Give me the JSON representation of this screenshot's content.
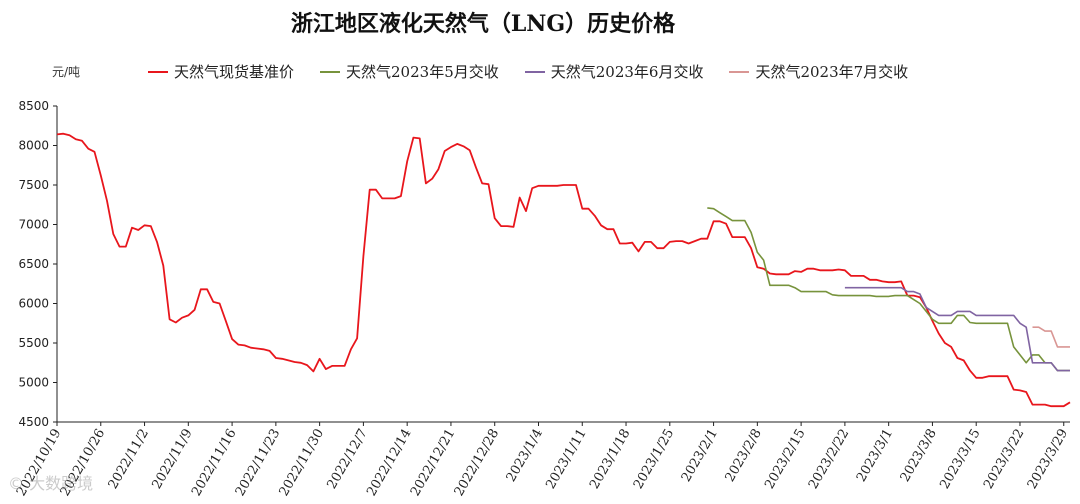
{
  "page": {
    "watermark": "© 大数跨境"
  },
  "chart_data": {
    "type": "line",
    "title": "浙江地区液化天然气（LNG）历史价格",
    "unit_label": "元/吨",
    "ylim": [
      4500,
      8500
    ],
    "yticks": [
      4500,
      5000,
      5500,
      6000,
      6500,
      7000,
      7500,
      8000,
      8500
    ],
    "xlim": [
      "2022-10-19",
      "2023-03-30"
    ],
    "xtick_labels": [
      "2022/10/19",
      "2022/10/26",
      "2022/11/2",
      "2022/11/9",
      "2022/11/16",
      "2022/11/23",
      "2022/11/30",
      "2022/12/7",
      "2022/12/14",
      "2022/12/21",
      "2022/12/28",
      "2023/1/4",
      "2023/1/11",
      "2023/1/18",
      "2023/1/25",
      "2023/2/1",
      "2023/2/8",
      "2023/2/15",
      "2023/2/22",
      "2023/3/1",
      "2023/3/8",
      "2023/3/15",
      "2023/3/22",
      "2023/3/29"
    ],
    "grid": false,
    "legend_position": "top",
    "series": [
      {
        "name": "天然气现货基准价",
        "color": "#e8161c",
        "points": [
          [
            "2022-10-19",
            8140
          ],
          [
            "2022-10-20",
            8150
          ],
          [
            "2022-10-21",
            8130
          ],
          [
            "2022-10-22",
            8080
          ],
          [
            "2022-10-23",
            8060
          ],
          [
            "2022-10-24",
            7960
          ],
          [
            "2022-10-25",
            7920
          ],
          [
            "2022-10-26",
            7620
          ],
          [
            "2022-10-27",
            7300
          ],
          [
            "2022-10-28",
            6880
          ],
          [
            "2022-10-29",
            6720
          ],
          [
            "2022-10-30",
            6720
          ],
          [
            "2022-10-31",
            6960
          ],
          [
            "2022-11-01",
            6930
          ],
          [
            "2022-11-02",
            6990
          ],
          [
            "2022-11-03",
            6980
          ],
          [
            "2022-11-04",
            6780
          ],
          [
            "2022-11-05",
            6480
          ],
          [
            "2022-11-06",
            5800
          ],
          [
            "2022-11-07",
            5760
          ],
          [
            "2022-11-08",
            5820
          ],
          [
            "2022-11-09",
            5850
          ],
          [
            "2022-11-10",
            5920
          ],
          [
            "2022-11-11",
            6180
          ],
          [
            "2022-11-12",
            6180
          ],
          [
            "2022-11-13",
            6020
          ],
          [
            "2022-11-14",
            6000
          ],
          [
            "2022-11-15",
            5780
          ],
          [
            "2022-11-16",
            5550
          ],
          [
            "2022-11-17",
            5480
          ],
          [
            "2022-11-18",
            5470
          ],
          [
            "2022-11-19",
            5440
          ],
          [
            "2022-11-20",
            5430
          ],
          [
            "2022-11-21",
            5420
          ],
          [
            "2022-11-22",
            5400
          ],
          [
            "2022-11-23",
            5310
          ],
          [
            "2022-11-24",
            5300
          ],
          [
            "2022-11-25",
            5280
          ],
          [
            "2022-11-26",
            5260
          ],
          [
            "2022-11-27",
            5250
          ],
          [
            "2022-11-28",
            5220
          ],
          [
            "2022-11-29",
            5140
          ],
          [
            "2022-11-30",
            5300
          ],
          [
            "2022-12-01",
            5170
          ],
          [
            "2022-12-02",
            5210
          ],
          [
            "2022-12-03",
            5210
          ],
          [
            "2022-12-04",
            5210
          ],
          [
            "2022-12-05",
            5420
          ],
          [
            "2022-12-06",
            5560
          ],
          [
            "2022-12-07",
            6600
          ],
          [
            "2022-12-08",
            7440
          ],
          [
            "2022-12-09",
            7440
          ],
          [
            "2022-12-10",
            7330
          ],
          [
            "2022-12-11",
            7330
          ],
          [
            "2022-12-12",
            7330
          ],
          [
            "2022-12-13",
            7360
          ],
          [
            "2022-12-14",
            7800
          ],
          [
            "2022-12-15",
            8100
          ],
          [
            "2022-12-16",
            8090
          ],
          [
            "2022-12-17",
            7520
          ],
          [
            "2022-12-18",
            7580
          ],
          [
            "2022-12-19",
            7700
          ],
          [
            "2022-12-20",
            7930
          ],
          [
            "2022-12-21",
            7980
          ],
          [
            "2022-12-22",
            8020
          ],
          [
            "2022-12-23",
            7990
          ],
          [
            "2022-12-24",
            7940
          ],
          [
            "2022-12-25",
            7720
          ],
          [
            "2022-12-26",
            7520
          ],
          [
            "2022-12-27",
            7510
          ],
          [
            "2022-12-28",
            7080
          ],
          [
            "2022-12-29",
            6980
          ],
          [
            "2022-12-30",
            6980
          ],
          [
            "2022-12-31",
            6970
          ],
          [
            "2023-01-01",
            7340
          ],
          [
            "2023-01-02",
            7170
          ],
          [
            "2023-01-03",
            7460
          ],
          [
            "2023-01-04",
            7490
          ],
          [
            "2023-01-05",
            7490
          ],
          [
            "2023-01-06",
            7490
          ],
          [
            "2023-01-07",
            7490
          ],
          [
            "2023-01-08",
            7500
          ],
          [
            "2023-01-09",
            7500
          ],
          [
            "2023-01-10",
            7500
          ],
          [
            "2023-01-11",
            7200
          ],
          [
            "2023-01-12",
            7200
          ],
          [
            "2023-01-13",
            7110
          ],
          [
            "2023-01-14",
            6990
          ],
          [
            "2023-01-15",
            6940
          ],
          [
            "2023-01-16",
            6940
          ],
          [
            "2023-01-17",
            6760
          ],
          [
            "2023-01-18",
            6760
          ],
          [
            "2023-01-19",
            6770
          ],
          [
            "2023-01-20",
            6660
          ],
          [
            "2023-01-21",
            6780
          ],
          [
            "2023-01-22",
            6780
          ],
          [
            "2023-01-23",
            6700
          ],
          [
            "2023-01-24",
            6700
          ],
          [
            "2023-01-25",
            6780
          ],
          [
            "2023-01-26",
            6790
          ],
          [
            "2023-01-27",
            6790
          ],
          [
            "2023-01-28",
            6760
          ],
          [
            "2023-01-29",
            6790
          ],
          [
            "2023-01-30",
            6820
          ],
          [
            "2023-01-31",
            6820
          ],
          [
            "2023-02-01",
            7040
          ],
          [
            "2023-02-02",
            7040
          ],
          [
            "2023-02-03",
            7010
          ],
          [
            "2023-02-04",
            6840
          ],
          [
            "2023-02-05",
            6840
          ],
          [
            "2023-02-06",
            6840
          ],
          [
            "2023-02-07",
            6700
          ],
          [
            "2023-02-08",
            6460
          ],
          [
            "2023-02-09",
            6440
          ],
          [
            "2023-02-10",
            6380
          ],
          [
            "2023-02-11",
            6370
          ],
          [
            "2023-02-12",
            6370
          ],
          [
            "2023-02-13",
            6370
          ],
          [
            "2023-02-14",
            6410
          ],
          [
            "2023-02-15",
            6400
          ],
          [
            "2023-02-16",
            6440
          ],
          [
            "2023-02-17",
            6440
          ],
          [
            "2023-02-18",
            6420
          ],
          [
            "2023-02-19",
            6420
          ],
          [
            "2023-02-20",
            6420
          ],
          [
            "2023-02-21",
            6430
          ],
          [
            "2023-02-22",
            6420
          ],
          [
            "2023-02-23",
            6350
          ],
          [
            "2023-02-24",
            6350
          ],
          [
            "2023-02-25",
            6350
          ],
          [
            "2023-02-26",
            6300
          ],
          [
            "2023-02-27",
            6300
          ],
          [
            "2023-02-28",
            6280
          ],
          [
            "2023-03-01",
            6270
          ],
          [
            "2023-03-02",
            6270
          ],
          [
            "2023-03-03",
            6280
          ],
          [
            "2023-03-04",
            6100
          ],
          [
            "2023-03-05",
            6100
          ],
          [
            "2023-03-06",
            6080
          ],
          [
            "2023-03-07",
            5950
          ],
          [
            "2023-03-08",
            5780
          ],
          [
            "2023-03-09",
            5620
          ],
          [
            "2023-03-10",
            5500
          ],
          [
            "2023-03-11",
            5450
          ],
          [
            "2023-03-12",
            5310
          ],
          [
            "2023-03-13",
            5280
          ],
          [
            "2023-03-14",
            5150
          ],
          [
            "2023-03-15",
            5060
          ],
          [
            "2023-03-16",
            5060
          ],
          [
            "2023-03-17",
            5080
          ],
          [
            "2023-03-18",
            5080
          ],
          [
            "2023-03-19",
            5080
          ],
          [
            "2023-03-20",
            5080
          ],
          [
            "2023-03-21",
            4910
          ],
          [
            "2023-03-22",
            4900
          ],
          [
            "2023-03-23",
            4880
          ],
          [
            "2023-03-24",
            4720
          ],
          [
            "2023-03-25",
            4720
          ],
          [
            "2023-03-26",
            4720
          ],
          [
            "2023-03-27",
            4700
          ],
          [
            "2023-03-28",
            4700
          ],
          [
            "2023-03-29",
            4700
          ],
          [
            "2023-03-30",
            4750
          ]
        ]
      },
      {
        "name": "天然气2023年5月交收",
        "color": "#77933c",
        "points": [
          [
            "2023-01-31",
            7210
          ],
          [
            "2023-02-01",
            7200
          ],
          [
            "2023-02-02",
            7150
          ],
          [
            "2023-02-03",
            7100
          ],
          [
            "2023-02-04",
            7050
          ],
          [
            "2023-02-05",
            7050
          ],
          [
            "2023-02-06",
            7050
          ],
          [
            "2023-02-07",
            6900
          ],
          [
            "2023-02-08",
            6650
          ],
          [
            "2023-02-09",
            6550
          ],
          [
            "2023-02-10",
            6230
          ],
          [
            "2023-02-11",
            6230
          ],
          [
            "2023-02-12",
            6230
          ],
          [
            "2023-02-13",
            6230
          ],
          [
            "2023-02-14",
            6200
          ],
          [
            "2023-02-15",
            6150
          ],
          [
            "2023-02-16",
            6150
          ],
          [
            "2023-02-17",
            6150
          ],
          [
            "2023-02-18",
            6150
          ],
          [
            "2023-02-19",
            6150
          ],
          [
            "2023-02-20",
            6110
          ],
          [
            "2023-02-21",
            6100
          ],
          [
            "2023-02-22",
            6100
          ],
          [
            "2023-02-23",
            6100
          ],
          [
            "2023-02-24",
            6100
          ],
          [
            "2023-02-25",
            6100
          ],
          [
            "2023-02-26",
            6100
          ],
          [
            "2023-02-27",
            6090
          ],
          [
            "2023-02-28",
            6090
          ],
          [
            "2023-03-01",
            6090
          ],
          [
            "2023-03-02",
            6100
          ],
          [
            "2023-03-03",
            6100
          ],
          [
            "2023-03-04",
            6100
          ],
          [
            "2023-03-05",
            6050
          ],
          [
            "2023-03-06",
            6000
          ],
          [
            "2023-03-07",
            5900
          ],
          [
            "2023-03-08",
            5800
          ],
          [
            "2023-03-09",
            5750
          ],
          [
            "2023-03-10",
            5750
          ],
          [
            "2023-03-11",
            5750
          ],
          [
            "2023-03-12",
            5850
          ],
          [
            "2023-03-13",
            5850
          ],
          [
            "2023-03-14",
            5760
          ],
          [
            "2023-03-15",
            5750
          ],
          [
            "2023-03-16",
            5750
          ],
          [
            "2023-03-17",
            5750
          ],
          [
            "2023-03-18",
            5750
          ],
          [
            "2023-03-19",
            5750
          ],
          [
            "2023-03-20",
            5750
          ],
          [
            "2023-03-21",
            5450
          ],
          [
            "2023-03-22",
            5350
          ],
          [
            "2023-03-23",
            5250
          ],
          [
            "2023-03-24",
            5350
          ],
          [
            "2023-03-25",
            5350
          ],
          [
            "2023-03-26",
            5250
          ],
          [
            "2023-03-27",
            5250
          ],
          [
            "2023-03-28",
            5150
          ],
          [
            "2023-03-29",
            5150
          ],
          [
            "2023-03-30",
            5150
          ]
        ]
      },
      {
        "name": "天然气2023年6月交收",
        "color": "#8064a2",
        "points": [
          [
            "2023-02-22",
            6200
          ],
          [
            "2023-02-23",
            6200
          ],
          [
            "2023-02-24",
            6200
          ],
          [
            "2023-02-25",
            6200
          ],
          [
            "2023-02-26",
            6200
          ],
          [
            "2023-02-27",
            6200
          ],
          [
            "2023-02-28",
            6200
          ],
          [
            "2023-03-01",
            6200
          ],
          [
            "2023-03-02",
            6200
          ],
          [
            "2023-03-03",
            6200
          ],
          [
            "2023-03-04",
            6150
          ],
          [
            "2023-03-05",
            6150
          ],
          [
            "2023-03-06",
            6120
          ],
          [
            "2023-03-07",
            5950
          ],
          [
            "2023-03-08",
            5900
          ],
          [
            "2023-03-09",
            5850
          ],
          [
            "2023-03-10",
            5850
          ],
          [
            "2023-03-11",
            5850
          ],
          [
            "2023-03-12",
            5900
          ],
          [
            "2023-03-13",
            5900
          ],
          [
            "2023-03-14",
            5900
          ],
          [
            "2023-03-15",
            5850
          ],
          [
            "2023-03-16",
            5850
          ],
          [
            "2023-03-17",
            5850
          ],
          [
            "2023-03-18",
            5850
          ],
          [
            "2023-03-19",
            5850
          ],
          [
            "2023-03-20",
            5850
          ],
          [
            "2023-03-21",
            5850
          ],
          [
            "2023-03-22",
            5750
          ],
          [
            "2023-03-23",
            5700
          ],
          [
            "2023-03-24",
            5250
          ],
          [
            "2023-03-25",
            5250
          ],
          [
            "2023-03-26",
            5250
          ],
          [
            "2023-03-27",
            5250
          ],
          [
            "2023-03-28",
            5150
          ],
          [
            "2023-03-29",
            5150
          ],
          [
            "2023-03-30",
            5150
          ]
        ]
      },
      {
        "name": "天然气2023年7月交收",
        "color": "#d99694",
        "points": [
          [
            "2023-03-24",
            5700
          ],
          [
            "2023-03-25",
            5700
          ],
          [
            "2023-03-26",
            5650
          ],
          [
            "2023-03-27",
            5650
          ],
          [
            "2023-03-28",
            5450
          ],
          [
            "2023-03-29",
            5450
          ],
          [
            "2023-03-30",
            5450
          ]
        ]
      }
    ]
  }
}
